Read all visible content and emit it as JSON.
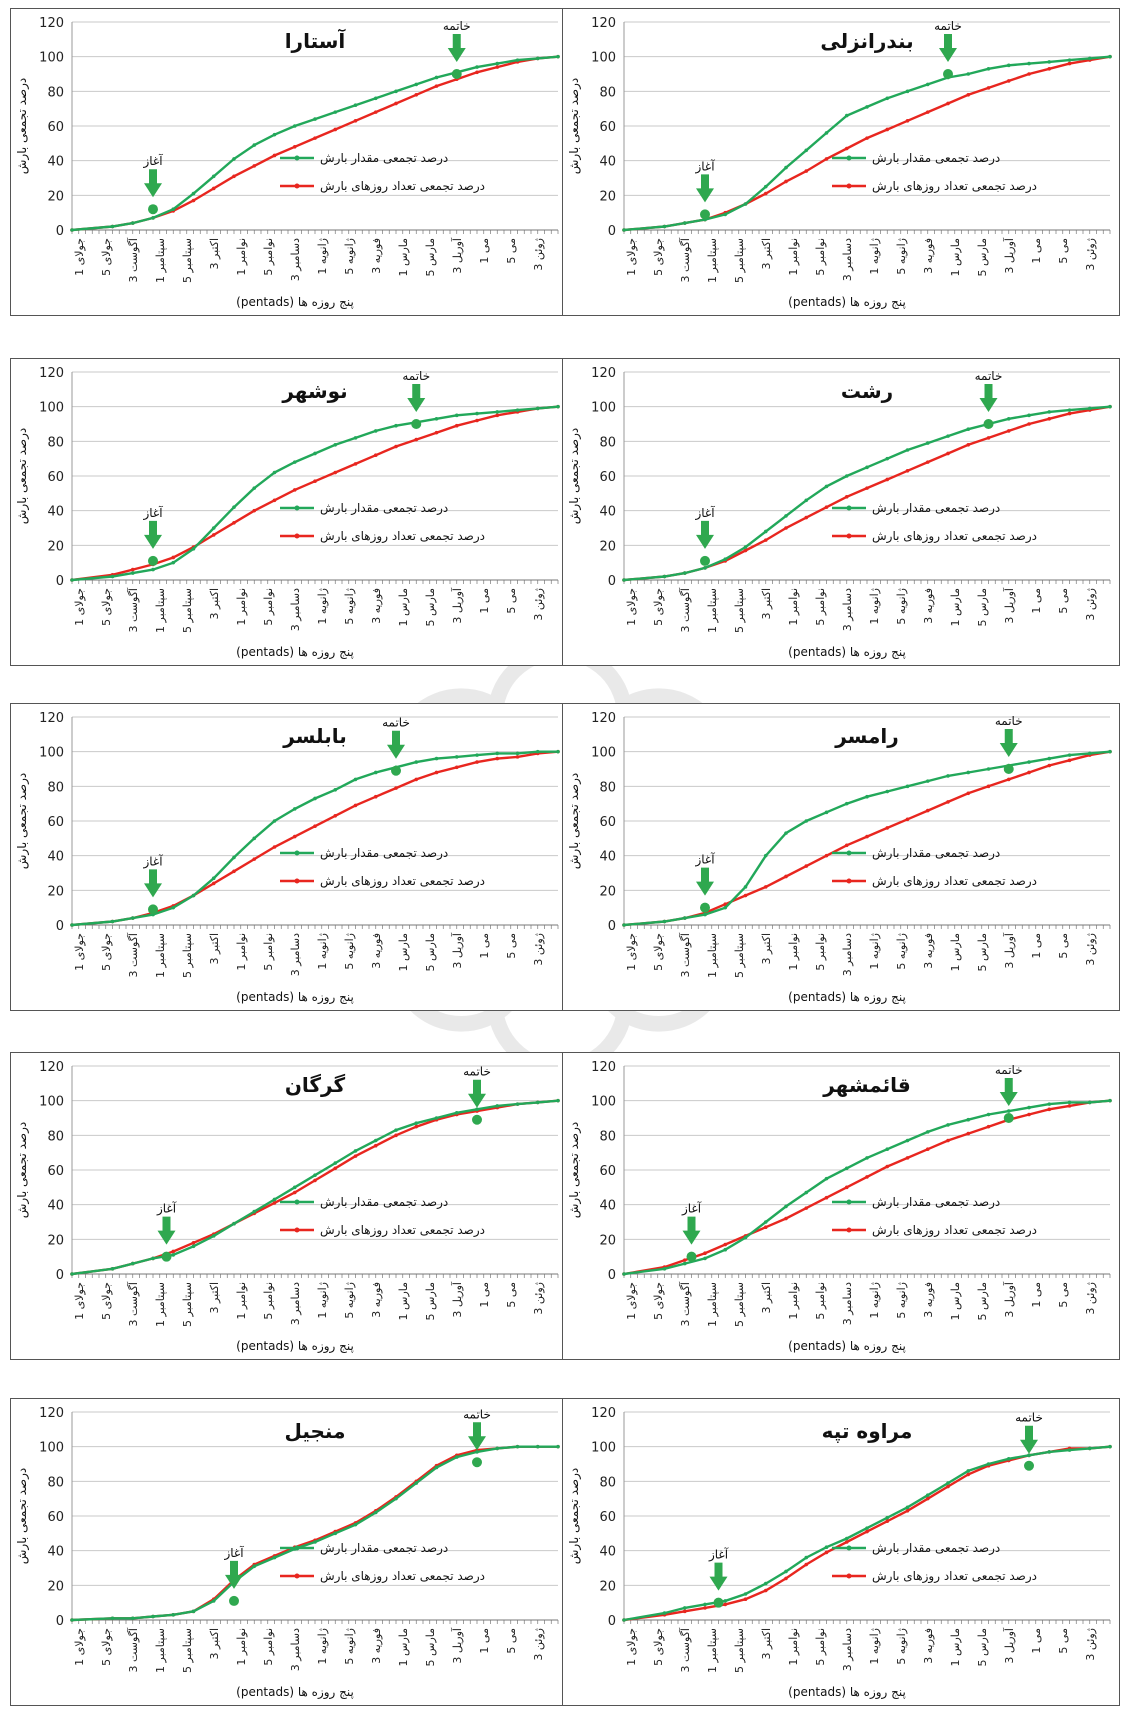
{
  "colors": {
    "rainfall": "#22a85a",
    "days": "#e8261f",
    "grid": "#c9c9c9",
    "arrow": "#2fa84f",
    "border": "#555555"
  },
  "common": {
    "ylabel": "درصد تجمعی بارش",
    "xlabel": "(pentads) پنج روزه ها",
    "legend_rain": "درصد تجمعی مقدار بارش",
    "legend_days": "درصد تجمعی تعداد روزهای بارش",
    "onset_label": "آغاز",
    "end_label": "خاتمه",
    "xticks": [
      "جولای 1",
      "جولای 5",
      "آگوست 3",
      "سپتامبر 1",
      "سپتامبر 5",
      "اکتبر 3",
      "نوامبر 1",
      "نوامبر 5",
      "دسامبر 3",
      "ژانویه 1",
      "ژانویه 5",
      "فوریه 3",
      "مارس 1",
      "مارس 5",
      "آوریل 3",
      "می 1",
      "می 5",
      "ژوئن 3"
    ]
  },
  "chart_data": [
    {
      "type": "line",
      "title": "آستارا",
      "ylim": [
        0,
        120
      ],
      "yticks": [
        0,
        20,
        40,
        60,
        80,
        100,
        120
      ],
      "x": [
        0,
        6,
        9,
        12,
        15,
        18,
        21,
        24,
        27,
        30,
        33,
        36,
        39,
        42,
        45,
        48,
        51,
        54,
        57,
        60,
        63,
        66,
        69,
        72
      ],
      "series": [
        {
          "name": "درصد تجمعی مقدار بارش",
          "values": [
            0,
            2,
            4,
            7,
            12,
            21,
            31,
            41,
            49,
            55,
            60,
            64,
            68,
            72,
            76,
            80,
            84,
            88,
            91,
            94,
            96,
            98,
            99,
            100
          ]
        },
        {
          "name": "درصد تجمعی تعداد روزهای بارش",
          "values": [
            0,
            2,
            4,
            7,
            11,
            17,
            24,
            31,
            37,
            43,
            48,
            53,
            58,
            63,
            68,
            73,
            78,
            83,
            87,
            91,
            94,
            97,
            99,
            100
          ]
        }
      ],
      "onset": {
        "x": 12,
        "y": 12
      },
      "end": {
        "x": 57,
        "y": 90
      }
    },
    {
      "type": "line",
      "title": "بندرانزلی",
      "ylim": [
        0,
        120
      ],
      "yticks": [
        0,
        20,
        40,
        60,
        80,
        100,
        120
      ],
      "x": [
        0,
        6,
        9,
        12,
        15,
        18,
        21,
        24,
        27,
        30,
        33,
        36,
        39,
        42,
        45,
        48,
        51,
        54,
        57,
        60,
        63,
        66,
        69,
        72
      ],
      "series": [
        {
          "name": "درصد تجمعی مقدار بارش",
          "values": [
            0,
            2,
            4,
            6,
            9,
            15,
            25,
            36,
            46,
            56,
            66,
            71,
            76,
            80,
            84,
            88,
            90,
            93,
            95,
            96,
            97,
            98,
            99,
            100
          ]
        },
        {
          "name": "درصد تجمعی تعداد روزهای بارش",
          "values": [
            0,
            2,
            4,
            6,
            10,
            15,
            21,
            28,
            34,
            41,
            47,
            53,
            58,
            63,
            68,
            73,
            78,
            82,
            86,
            90,
            93,
            96,
            98,
            100
          ]
        }
      ],
      "onset": {
        "x": 12,
        "y": 9
      },
      "end": {
        "x": 48,
        "y": 90
      }
    },
    {
      "type": "line",
      "title": "نوشهر",
      "ylim": [
        0,
        120
      ],
      "yticks": [
        0,
        20,
        40,
        60,
        80,
        100,
        120
      ],
      "x": [
        0,
        6,
        9,
        12,
        15,
        18,
        21,
        24,
        27,
        30,
        33,
        36,
        39,
        42,
        45,
        48,
        51,
        54,
        57,
        60,
        63,
        66,
        69,
        72
      ],
      "series": [
        {
          "name": "درصد تجمعی مقدار بارش",
          "values": [
            0,
            2,
            4,
            6,
            10,
            18,
            30,
            42,
            53,
            62,
            68,
            73,
            78,
            82,
            86,
            89,
            91,
            93,
            95,
            96,
            97,
            98,
            99,
            100
          ]
        },
        {
          "name": "درصد تجمعی تعداد روزهای بارش",
          "values": [
            0,
            3,
            6,
            9,
            13,
            19,
            26,
            33,
            40,
            46,
            52,
            57,
            62,
            67,
            72,
            77,
            81,
            85,
            89,
            92,
            95,
            97,
            99,
            100
          ]
        }
      ],
      "onset": {
        "x": 12,
        "y": 11
      },
      "end": {
        "x": 51,
        "y": 90
      }
    },
    {
      "type": "line",
      "title": "رشت",
      "ylim": [
        0,
        120
      ],
      "yticks": [
        0,
        20,
        40,
        60,
        80,
        100,
        120
      ],
      "x": [
        0,
        6,
        9,
        12,
        15,
        18,
        21,
        24,
        27,
        30,
        33,
        36,
        39,
        42,
        45,
        48,
        51,
        54,
        57,
        60,
        63,
        66,
        69,
        72
      ],
      "series": [
        {
          "name": "درصد تجمعی مقدار بارش",
          "values": [
            0,
            2,
            4,
            7,
            12,
            19,
            28,
            37,
            46,
            54,
            60,
            65,
            70,
            75,
            79,
            83,
            87,
            90,
            93,
            95,
            97,
            98,
            99,
            100
          ]
        },
        {
          "name": "درصد تجمعی تعداد روزهای بارش",
          "values": [
            0,
            2,
            4,
            7,
            11,
            17,
            23,
            30,
            36,
            42,
            48,
            53,
            58,
            63,
            68,
            73,
            78,
            82,
            86,
            90,
            93,
            96,
            98,
            100
          ]
        }
      ],
      "onset": {
        "x": 12,
        "y": 11
      },
      "end": {
        "x": 54,
        "y": 90
      }
    },
    {
      "type": "line",
      "title": "بابلسر",
      "ylim": [
        0,
        120
      ],
      "yticks": [
        0,
        20,
        40,
        60,
        80,
        100,
        120
      ],
      "x": [
        0,
        6,
        9,
        12,
        15,
        18,
        21,
        24,
        27,
        30,
        33,
        36,
        39,
        42,
        45,
        48,
        51,
        54,
        57,
        60,
        63,
        66,
        69,
        72
      ],
      "series": [
        {
          "name": "درصد تجمعی مقدار بارش",
          "values": [
            0,
            2,
            4,
            6,
            10,
            17,
            27,
            39,
            50,
            60,
            67,
            73,
            78,
            84,
            88,
            91,
            94,
            96,
            97,
            98,
            99,
            99,
            100,
            100
          ]
        },
        {
          "name": "درصد تجمعی تعداد روزهای بارش",
          "values": [
            0,
            2,
            4,
            7,
            11,
            17,
            24,
            31,
            38,
            45,
            51,
            57,
            63,
            69,
            74,
            79,
            84,
            88,
            91,
            94,
            96,
            97,
            99,
            100
          ]
        }
      ],
      "onset": {
        "x": 12,
        "y": 9
      },
      "end": {
        "x": 48,
        "y": 89
      }
    },
    {
      "type": "line",
      "title": "رامسر",
      "ylim": [
        0,
        120
      ],
      "yticks": [
        0,
        20,
        40,
        60,
        80,
        100,
        120
      ],
      "x": [
        0,
        6,
        9,
        12,
        15,
        18,
        21,
        24,
        27,
        30,
        33,
        36,
        39,
        42,
        45,
        48,
        51,
        54,
        57,
        60,
        63,
        66,
        69,
        72
      ],
      "series": [
        {
          "name": "درصد تجمعی مقدار بارش",
          "values": [
            0,
            2,
            4,
            6,
            10,
            22,
            40,
            53,
            60,
            65,
            70,
            74,
            77,
            80,
            83,
            86,
            88,
            90,
            92,
            94,
            96,
            98,
            99,
            100
          ]
        },
        {
          "name": "درصد تجمعی تعداد روزهای بارش",
          "values": [
            0,
            2,
            4,
            7,
            12,
            17,
            22,
            28,
            34,
            40,
            46,
            51,
            56,
            61,
            66,
            71,
            76,
            80,
            84,
            88,
            92,
            95,
            98,
            100
          ]
        }
      ],
      "onset": {
        "x": 12,
        "y": 10
      },
      "end": {
        "x": 57,
        "y": 90
      }
    },
    {
      "type": "line",
      "title": "گرگان",
      "ylim": [
        0,
        120
      ],
      "yticks": [
        0,
        20,
        40,
        60,
        80,
        100,
        120
      ],
      "x": [
        0,
        6,
        9,
        12,
        15,
        18,
        21,
        24,
        27,
        30,
        33,
        36,
        39,
        42,
        45,
        48,
        51,
        54,
        57,
        60,
        63,
        66,
        69,
        72
      ],
      "series": [
        {
          "name": "درصد تجمعی مقدار بارش",
          "values": [
            0,
            3,
            6,
            9,
            11,
            16,
            22,
            29,
            36,
            43,
            50,
            57,
            64,
            71,
            77,
            83,
            87,
            90,
            93,
            95,
            97,
            98,
            99,
            100
          ]
        },
        {
          "name": "درصد تجمعی تعداد روزهای بارش",
          "values": [
            0,
            3,
            6,
            9,
            13,
            18,
            23,
            29,
            35,
            41,
            47,
            54,
            61,
            68,
            74,
            80,
            85,
            89,
            92,
            94,
            96,
            98,
            99,
            100
          ]
        }
      ],
      "onset": {
        "x": 14,
        "y": 10
      },
      "end": {
        "x": 60,
        "y": 89
      }
    },
    {
      "type": "line",
      "title": "قائمشهر",
      "ylim": [
        0,
        120
      ],
      "yticks": [
        0,
        20,
        40,
        60,
        80,
        100,
        120
      ],
      "x": [
        0,
        6,
        9,
        12,
        15,
        18,
        21,
        24,
        27,
        30,
        33,
        36,
        39,
        42,
        45,
        48,
        51,
        54,
        57,
        60,
        63,
        66,
        69,
        72
      ],
      "series": [
        {
          "name": "درصد تجمعی مقدار بارش",
          "values": [
            0,
            3,
            6,
            9,
            14,
            21,
            30,
            39,
            47,
            55,
            61,
            67,
            72,
            77,
            82,
            86,
            89,
            92,
            94,
            96,
            98,
            99,
            99,
            100
          ]
        },
        {
          "name": "درصد تجمعی تعداد روزهای بارش",
          "values": [
            0,
            4,
            8,
            12,
            17,
            22,
            27,
            32,
            38,
            44,
            50,
            56,
            62,
            67,
            72,
            77,
            81,
            85,
            89,
            92,
            95,
            97,
            99,
            100
          ]
        }
      ],
      "onset": {
        "x": 10,
        "y": 10
      },
      "end": {
        "x": 57,
        "y": 90
      }
    },
    {
      "type": "line",
      "title": "منجیل",
      "ylim": [
        0,
        120
      ],
      "yticks": [
        0,
        20,
        40,
        60,
        80,
        100,
        120
      ],
      "x": [
        0,
        6,
        9,
        12,
        15,
        18,
        21,
        24,
        27,
        30,
        33,
        36,
        39,
        42,
        45,
        48,
        51,
        54,
        57,
        60,
        63,
        66,
        69,
        72
      ],
      "series": [
        {
          "name": "درصد تجمعی مقدار بارش",
          "values": [
            0,
            1,
            1,
            2,
            3,
            5,
            11,
            22,
            31,
            36,
            41,
            45,
            50,
            55,
            62,
            70,
            79,
            88,
            94,
            97,
            99,
            100,
            100,
            100
          ]
        },
        {
          "name": "درصد تجمعی تعداد روزهای بارش",
          "values": [
            0,
            1,
            1,
            2,
            3,
            5,
            12,
            23,
            32,
            37,
            42,
            46,
            51,
            56,
            63,
            71,
            80,
            89,
            95,
            98,
            99,
            100,
            100,
            100
          ]
        }
      ],
      "onset": {
        "x": 24,
        "y": 11
      },
      "end": {
        "x": 60,
        "y": 91
      }
    },
    {
      "type": "line",
      "title": "مراوه تپه",
      "ylim": [
        0,
        120
      ],
      "yticks": [
        0,
        20,
        40,
        60,
        80,
        100,
        120
      ],
      "x": [
        0,
        6,
        9,
        12,
        15,
        18,
        21,
        24,
        27,
        30,
        33,
        36,
        39,
        42,
        45,
        48,
        51,
        54,
        57,
        60,
        63,
        66,
        69,
        72
      ],
      "series": [
        {
          "name": "درصد تجمعی مقدار بارش",
          "values": [
            0,
            4,
            7,
            9,
            11,
            15,
            21,
            28,
            36,
            42,
            47,
            53,
            59,
            65,
            72,
            79,
            86,
            90,
            93,
            95,
            97,
            98,
            99,
            100
          ]
        },
        {
          "name": "درصد تجمعی تعداد روزهای بارش",
          "values": [
            0,
            3,
            5,
            7,
            9,
            12,
            17,
            24,
            32,
            39,
            45,
            51,
            57,
            63,
            70,
            77,
            84,
            89,
            92,
            95,
            97,
            99,
            99,
            100
          ]
        }
      ],
      "onset": {
        "x": 14,
        "y": 10
      },
      "end": {
        "x": 60,
        "y": 89
      }
    }
  ]
}
